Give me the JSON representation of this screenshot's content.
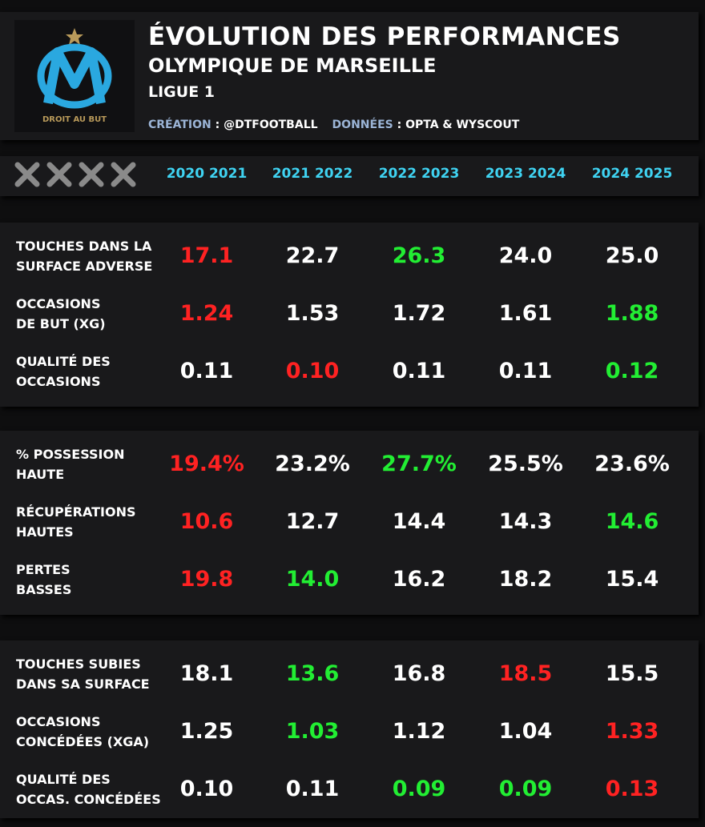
{
  "header": {
    "title": "ÉVOLUTION DES PERFORMANCES",
    "subtitle": "OLYMPIQUE DE MARSEILLE",
    "league": "LIGUE 1",
    "logo_motto": "DROIT AU BUT",
    "credits": [
      {
        "key": "CRÉATION",
        "text": ": @DTFOOTBALL"
      },
      {
        "key": "DONNÉES",
        "text": ": OPTA & WYSCOUT"
      }
    ]
  },
  "palette": {
    "red": "#ff2222",
    "green": "#22ee33",
    "white": "#ffffff"
  },
  "table": {
    "columns": [
      "2020 2021",
      "2021 2022",
      "2022 2023",
      "2023 2024",
      "2024 2025"
    ],
    "sections": [
      {
        "rows": [
          {
            "label": [
              "TOUCHES DANS LA",
              "SURFACE ADVERSE"
            ],
            "values": [
              "17.1",
              "22.7",
              "26.3",
              "24.0",
              "25.0"
            ],
            "colors": [
              "red",
              "white",
              "green",
              "white",
              "white"
            ]
          },
          {
            "label": [
              "OCCASIONS",
              "DE BUT (XG)"
            ],
            "values": [
              "1.24",
              "1.53",
              "1.72",
              "1.61",
              "1.88"
            ],
            "colors": [
              "red",
              "white",
              "white",
              "white",
              "green"
            ]
          },
          {
            "label": [
              "QUALITÉ DES",
              "OCCASIONS"
            ],
            "values": [
              "0.11",
              "0.10",
              "0.11",
              "0.11",
              "0.12"
            ],
            "colors": [
              "white",
              "red",
              "white",
              "white",
              "green"
            ]
          }
        ]
      },
      {
        "rows": [
          {
            "label": [
              "% POSSESSION",
              "HAUTE"
            ],
            "values": [
              "19.4%",
              "23.2%",
              "27.7%",
              "25.5%",
              "23.6%"
            ],
            "colors": [
              "red",
              "white",
              "green",
              "white",
              "white"
            ]
          },
          {
            "label": [
              "RÉCUPÉRATIONS",
              "HAUTES"
            ],
            "values": [
              "10.6",
              "12.7",
              "14.4",
              "14.3",
              "14.6"
            ],
            "colors": [
              "red",
              "white",
              "white",
              "white",
              "green"
            ]
          },
          {
            "label": [
              "PERTES",
              "BASSES"
            ],
            "values": [
              "19.8",
              "14.0",
              "16.2",
              "18.2",
              "15.4"
            ],
            "colors": [
              "red",
              "green",
              "white",
              "white",
              "white"
            ]
          }
        ]
      },
      {
        "rows": [
          {
            "label": [
              "TOUCHES SUBIES",
              "DANS SA SURFACE"
            ],
            "values": [
              "18.1",
              "13.6",
              "16.8",
              "18.5",
              "15.5"
            ],
            "colors": [
              "white",
              "green",
              "white",
              "red",
              "white"
            ]
          },
          {
            "label": [
              "OCCASIONS",
              "CONCÉDÉES (XGA)"
            ],
            "values": [
              "1.25",
              "1.03",
              "1.12",
              "1.04",
              "1.33"
            ],
            "colors": [
              "white",
              "green",
              "white",
              "white",
              "red"
            ]
          },
          {
            "label": [
              "QUALITÉ DES",
              "OCCAS. CONCÉDÉES"
            ],
            "values": [
              "0.10",
              "0.11",
              "0.09",
              "0.09",
              "0.13"
            ],
            "colors": [
              "white",
              "white",
              "green",
              "green",
              "red"
            ]
          }
        ]
      }
    ]
  }
}
